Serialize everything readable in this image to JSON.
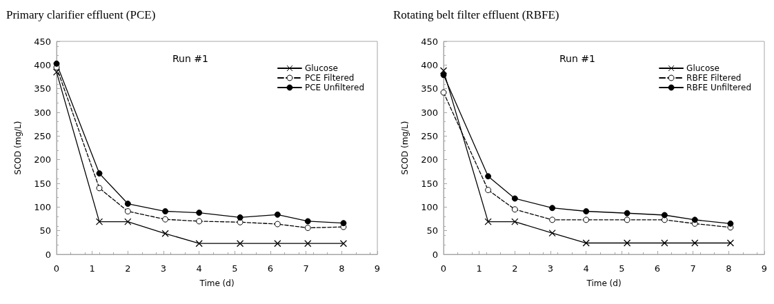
{
  "chart_data": [
    {
      "type": "line",
      "title": "Primary clarifier effluent (PCE)",
      "xlabel": "Time (d)",
      "ylabel": "SCOD (mg/L)",
      "annotations": [
        "Run #1"
      ],
      "xlim": [
        0,
        9
      ],
      "xticks": [
        0,
        1,
        2,
        3,
        4,
        5,
        6,
        7,
        8,
        9
      ],
      "ylim": [
        0,
        450
      ],
      "yticks": [
        0,
        50,
        100,
        150,
        200,
        250,
        300,
        350,
        400,
        450
      ],
      "grid": false,
      "legend": "top right",
      "series": [
        {
          "name": "Glucose",
          "color": "#000000",
          "marker": "cross",
          "line_style": "solid",
          "x": [
            0,
            1.2,
            2,
            3.05,
            4,
            5.15,
            6.2,
            7.05,
            8.05
          ],
          "values": [
            385,
            69,
            69,
            44,
            23,
            23,
            23,
            23,
            23
          ]
        },
        {
          "name": "PCE Filtered",
          "color": "#000000",
          "marker": "circle",
          "line_style": "dashed",
          "x": [
            0,
            1.2,
            2,
            3.05,
            4,
            5.15,
            6.2,
            7.05,
            8.05
          ],
          "values": [
            395,
            140,
            91,
            74,
            70,
            68,
            64,
            56,
            58
          ]
        },
        {
          "name": "PCE Unfiltered",
          "color": "#000000",
          "marker": "circle",
          "line_style": "solid",
          "x": [
            0,
            1.2,
            2,
            3.05,
            4,
            5.15,
            6.2,
            7.05,
            8.05
          ],
          "values": [
            403,
            171,
            107,
            91,
            88,
            78,
            84,
            70,
            66
          ]
        }
      ]
    },
    {
      "type": "line",
      "title": "Rotating belt filter effluent (RBFE)",
      "xlabel": "Time (d)",
      "ylabel": "SCOD (mg/L)",
      "annotations": [
        "Run #1"
      ],
      "xlim": [
        0,
        9
      ],
      "xticks": [
        0,
        1,
        2,
        3,
        4,
        5,
        6,
        7,
        8,
        9
      ],
      "ylim": [
        0,
        450
      ],
      "yticks": [
        0,
        50,
        100,
        150,
        200,
        250,
        300,
        350,
        400,
        450
      ],
      "grid": false,
      "legend": "top right",
      "series": [
        {
          "name": "Glucose",
          "color": "#000000",
          "marker": "cross",
          "line_style": "solid",
          "x": [
            0,
            1.25,
            2,
            3.05,
            4,
            5.15,
            6.2,
            7.05,
            8.05
          ],
          "values": [
            388,
            69,
            69,
            45,
            24,
            24,
            24,
            24,
            24
          ]
        },
        {
          "name": "RBFE Filtered",
          "color": "#000000",
          "marker": "circle",
          "line_style": "dashed",
          "x": [
            0,
            1.25,
            2,
            3.05,
            4,
            5.15,
            6.2,
            7.05,
            8.05
          ],
          "values": [
            342,
            136,
            95,
            73,
            73,
            73,
            73,
            65,
            57
          ]
        },
        {
          "name": "RBFE Unfiltered",
          "color": "#000000",
          "marker": "circle",
          "line_style": "solid",
          "x": [
            0,
            1.25,
            2,
            3.05,
            4,
            5.15,
            6.2,
            7.05,
            8.05
          ],
          "values": [
            379,
            165,
            118,
            98,
            91,
            87,
            83,
            73,
            65
          ]
        }
      ]
    }
  ]
}
